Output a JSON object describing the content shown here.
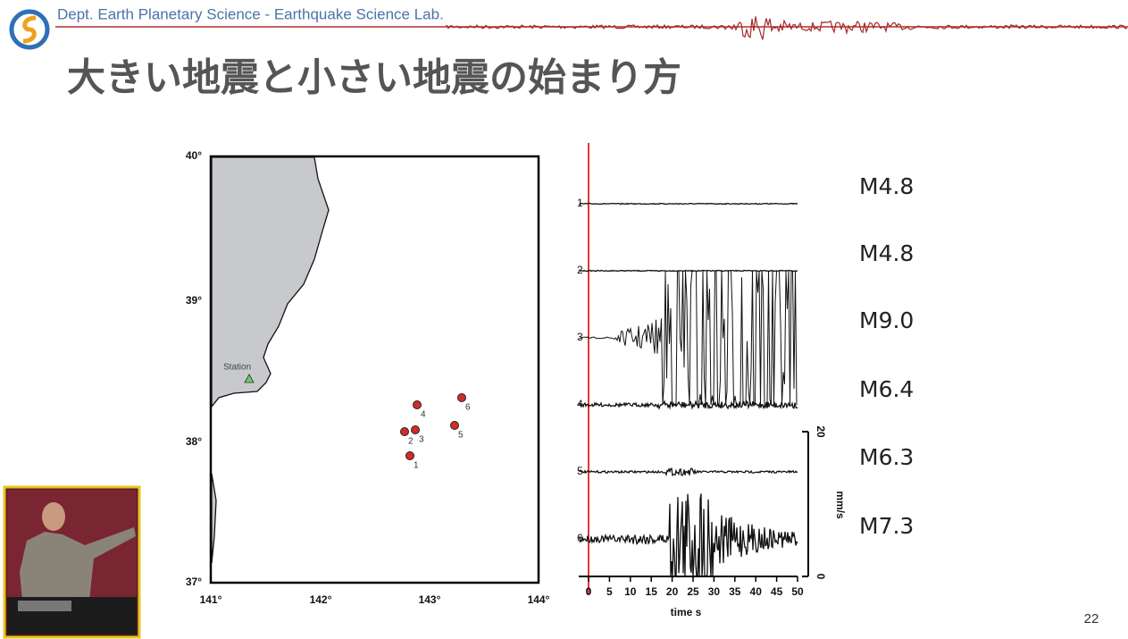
{
  "header": {
    "lab": "Dept. Earth Planetary Science - Earthquake Science Lab."
  },
  "slide": {
    "title": "大きい地震と小さい地震の始まり方",
    "page": "22"
  },
  "map": {
    "lat_labels": [
      "40°",
      "39°",
      "38°",
      "37°"
    ],
    "lon_labels": [
      "141°",
      "142°",
      "143°",
      "144°"
    ],
    "station": "Station",
    "events": [
      "1",
      "2",
      "3",
      "4",
      "5",
      "6"
    ]
  },
  "seismograms": {
    "trace_labels": [
      "1",
      "2",
      "3",
      "4",
      "5",
      "6"
    ],
    "time_ticks": [
      "0",
      "5",
      "10",
      "15",
      "20",
      "25",
      "30",
      "35",
      "40",
      "45",
      "50"
    ],
    "time_label": "time s",
    "scale_top": "20",
    "scale_unit": "mm/s",
    "scale_bottom": "0",
    "magnitudes": [
      "M4.8",
      "M4.8",
      "M9.0",
      "M6.4",
      "M6.3",
      "M7.3"
    ]
  }
}
